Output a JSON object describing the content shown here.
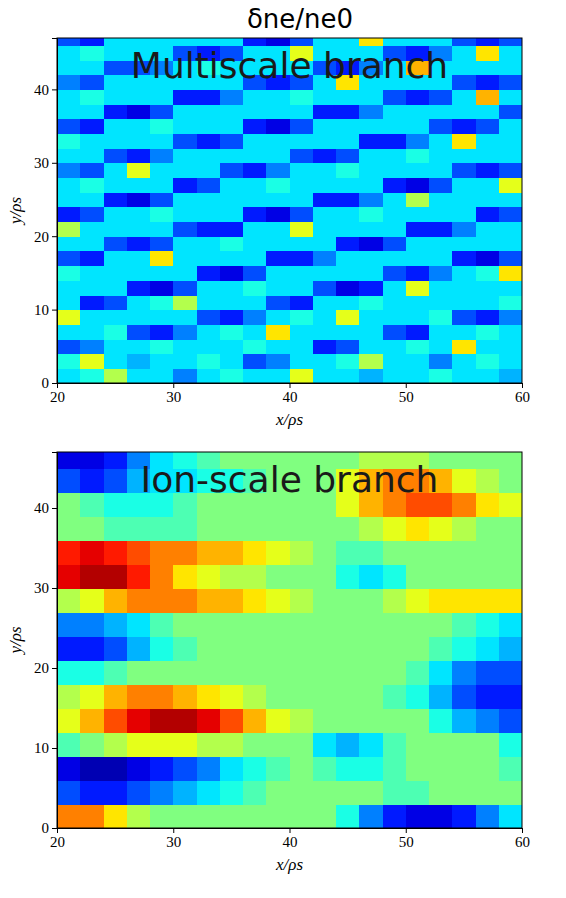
{
  "title": "δne/ne0",
  "chart_data": [
    {
      "type": "heatmap",
      "title": "Multiscale branch",
      "xlabel": "x/ρs",
      "ylabel": "y/ρs",
      "xlim": [
        20,
        60
      ],
      "ylim": [
        0,
        47
      ],
      "xticks": [
        20,
        30,
        40,
        50,
        60
      ],
      "yticks": [
        0,
        10,
        20,
        30,
        40
      ],
      "zlim": [
        -1,
        1
      ],
      "x": [
        21,
        23,
        25,
        27,
        29,
        31,
        33,
        35,
        37,
        39,
        41,
        43,
        45,
        47,
        49,
        51,
        53,
        55,
        57,
        59
      ],
      "y": [
        1,
        3,
        5,
        7,
        9,
        11,
        13,
        15,
        17,
        19,
        21,
        23,
        25,
        27,
        29,
        31,
        33,
        35,
        37,
        39,
        41,
        43,
        45,
        47
      ],
      "values": [
        [
          -0.3,
          -0.2,
          0.1,
          -0.3,
          -0.3,
          -0.5,
          -0.3,
          -0.2,
          -0.3,
          -0.3,
          0.2,
          -0.3,
          -0.3,
          -0.4,
          -0.3,
          -0.3,
          -0.2,
          -0.3,
          -0.3,
          -0.4
        ],
        [
          -0.2,
          0.2,
          -0.3,
          -0.4,
          -0.3,
          -0.3,
          -0.2,
          -0.3,
          -0.6,
          -0.5,
          -0.3,
          -0.3,
          -0.2,
          0.1,
          -0.3,
          -0.3,
          -0.5,
          -0.3,
          -0.2,
          -0.3
        ],
        [
          -0.6,
          -0.5,
          -0.3,
          -0.3,
          -0.2,
          -0.3,
          -0.3,
          -0.3,
          -0.2,
          -0.3,
          -0.3,
          -0.7,
          -0.6,
          -0.3,
          -0.3,
          -0.2,
          -0.3,
          0.3,
          -0.3,
          -0.3
        ],
        [
          -0.3,
          -0.3,
          -0.2,
          -0.6,
          -0.7,
          -0.5,
          -0.3,
          -0.2,
          -0.3,
          0.3,
          -0.3,
          -0.3,
          -0.3,
          -0.3,
          -0.6,
          -0.7,
          -0.3,
          -0.3,
          -0.2,
          -0.3
        ],
        [
          0.2,
          -0.3,
          -0.3,
          -0.3,
          -0.3,
          -0.3,
          -0.6,
          -0.7,
          -0.5,
          -0.3,
          -0.2,
          -0.3,
          0.2,
          -0.3,
          -0.3,
          -0.3,
          -0.2,
          -0.6,
          -0.7,
          -0.5
        ],
        [
          -0.3,
          -0.7,
          -0.6,
          -0.3,
          -0.2,
          0.1,
          -0.3,
          -0.3,
          -0.3,
          -0.6,
          -0.7,
          -0.3,
          -0.3,
          -0.2,
          -0.3,
          -0.3,
          -0.3,
          -0.3,
          -0.3,
          -0.2
        ],
        [
          -0.3,
          -0.3,
          -0.3,
          -0.7,
          -0.8,
          -0.6,
          -0.3,
          -0.3,
          -0.2,
          -0.3,
          -0.3,
          -0.6,
          -0.8,
          -0.7,
          -0.3,
          0.2,
          -0.3,
          -0.3,
          -0.3,
          -0.3
        ],
        [
          -0.2,
          -0.3,
          -0.3,
          -0.3,
          -0.3,
          -0.3,
          -0.7,
          -0.8,
          -0.6,
          -0.3,
          -0.3,
          -0.3,
          -0.3,
          -0.3,
          -0.6,
          -0.7,
          -0.5,
          -0.3,
          -0.2,
          0.3
        ],
        [
          -0.6,
          -0.7,
          -0.3,
          -0.3,
          0.3,
          -0.3,
          -0.3,
          -0.3,
          -0.3,
          -0.7,
          -0.7,
          -0.5,
          -0.3,
          -0.3,
          -0.3,
          -0.3,
          -0.3,
          -0.7,
          -0.8,
          -0.6
        ],
        [
          -0.3,
          -0.3,
          -0.6,
          -0.7,
          -0.6,
          -0.3,
          -0.3,
          -0.2,
          -0.3,
          -0.3,
          -0.3,
          -0.3,
          -0.7,
          -0.8,
          -0.6,
          -0.3,
          -0.3,
          -0.3,
          -0.3,
          -0.3
        ],
        [
          0.1,
          -0.3,
          -0.3,
          -0.3,
          -0.3,
          -0.6,
          -0.7,
          -0.7,
          -0.3,
          -0.3,
          0.2,
          -0.3,
          -0.3,
          -0.3,
          -0.3,
          -0.7,
          -0.7,
          -0.5,
          -0.3,
          -0.3
        ],
        [
          -0.7,
          -0.6,
          -0.3,
          -0.3,
          -0.2,
          -0.3,
          -0.3,
          -0.3,
          -0.7,
          -0.8,
          -0.6,
          -0.3,
          -0.3,
          -0.2,
          -0.3,
          -0.3,
          -0.3,
          -0.3,
          -0.7,
          -0.6
        ],
        [
          -0.3,
          -0.3,
          -0.7,
          -0.8,
          -0.6,
          -0.3,
          -0.3,
          -0.3,
          -0.3,
          -0.3,
          -0.3,
          -0.7,
          -0.7,
          -0.5,
          -0.3,
          0.1,
          -0.3,
          -0.3,
          -0.3,
          -0.3
        ],
        [
          -0.3,
          -0.2,
          -0.3,
          -0.3,
          -0.3,
          -0.7,
          -0.6,
          -0.3,
          -0.3,
          -0.2,
          -0.3,
          -0.3,
          -0.3,
          -0.3,
          -0.7,
          -0.8,
          -0.6,
          -0.3,
          -0.3,
          0.2
        ],
        [
          -0.5,
          -0.6,
          -0.3,
          0.2,
          -0.3,
          -0.3,
          -0.3,
          -0.6,
          -0.7,
          -0.5,
          -0.3,
          -0.3,
          -0.2,
          -0.3,
          -0.3,
          -0.3,
          -0.3,
          -0.6,
          -0.7,
          -0.6
        ],
        [
          -0.3,
          -0.3,
          -0.6,
          -0.7,
          -0.5,
          -0.3,
          -0.3,
          -0.3,
          -0.3,
          -0.3,
          -0.6,
          -0.7,
          -0.6,
          -0.3,
          -0.3,
          -0.2,
          -0.3,
          -0.3,
          -0.3,
          -0.3
        ],
        [
          -0.2,
          -0.3,
          -0.3,
          -0.3,
          -0.3,
          -0.6,
          -0.7,
          -0.6,
          -0.3,
          -0.3,
          -0.3,
          -0.3,
          -0.3,
          -0.7,
          -0.7,
          -0.5,
          -0.3,
          0.3,
          -0.3,
          -0.3
        ],
        [
          -0.6,
          -0.7,
          -0.3,
          -0.3,
          -0.2,
          -0.3,
          -0.3,
          -0.3,
          -0.7,
          -0.8,
          -0.6,
          -0.3,
          -0.3,
          -0.3,
          -0.3,
          -0.3,
          -0.6,
          -0.7,
          -0.6,
          -0.3
        ],
        [
          -0.3,
          -0.3,
          -0.7,
          -0.8,
          -0.6,
          -0.3,
          -0.3,
          -0.3,
          -0.3,
          -0.3,
          -0.3,
          -0.7,
          -0.7,
          -0.5,
          -0.3,
          -0.3,
          -0.3,
          -0.3,
          -0.3,
          -0.6
        ],
        [
          -0.3,
          -0.2,
          -0.3,
          -0.3,
          -0.3,
          -0.7,
          -0.7,
          -0.5,
          -0.3,
          -0.3,
          -0.2,
          -0.3,
          -0.3,
          -0.3,
          -0.6,
          -0.7,
          -0.6,
          -0.3,
          0.4,
          -0.3
        ],
        [
          -0.5,
          -0.6,
          -0.3,
          -0.3,
          -0.3,
          -0.3,
          -0.3,
          -0.3,
          -0.6,
          -0.7,
          -0.6,
          -0.3,
          0.3,
          -0.3,
          -0.3,
          -0.3,
          -0.3,
          -0.6,
          -0.7,
          -0.6
        ],
        [
          -0.3,
          -0.3,
          -0.6,
          -0.6,
          -0.5,
          -0.3,
          -0.2,
          -0.3,
          -0.3,
          -0.3,
          -0.3,
          -0.6,
          -0.7,
          -0.5,
          -0.3,
          0.4,
          -0.3,
          -0.3,
          -0.3,
          -0.3
        ],
        [
          -0.3,
          -0.2,
          -0.3,
          -0.3,
          -0.3,
          -0.6,
          -0.7,
          -0.6,
          -0.3,
          -0.3,
          0.2,
          -0.3,
          -0.3,
          -0.3,
          -0.6,
          -0.7,
          -0.5,
          -0.3,
          0.3,
          -0.3
        ],
        [
          -0.6,
          -0.7,
          -0.3,
          -0.3,
          -0.3,
          -0.3,
          -0.3,
          -0.3,
          -0.7,
          -0.8,
          -0.6,
          -0.3,
          -0.3,
          0.3,
          -0.3,
          -0.3,
          -0.3,
          -0.6,
          -0.7,
          -0.6
        ]
      ]
    },
    {
      "type": "heatmap",
      "title": "Ion-scale branch",
      "xlabel": "x/ρs",
      "ylabel": "y/ρs",
      "xlim": [
        20,
        60
      ],
      "ylim": [
        0,
        47
      ],
      "xticks": [
        20,
        30,
        40,
        50,
        60
      ],
      "yticks": [
        0,
        10,
        20,
        30,
        40
      ],
      "zlim": [
        -1,
        1
      ],
      "x": [
        21,
        23,
        25,
        27,
        29,
        31,
        33,
        35,
        37,
        39,
        41,
        43,
        45,
        47,
        49,
        51,
        53,
        55,
        57,
        59
      ],
      "y": [
        1.5,
        4.5,
        7.5,
        10.5,
        13.5,
        16.5,
        19.5,
        22.5,
        25.5,
        28.5,
        31.5,
        34.5,
        37.5,
        40.5,
        43.5,
        46.5
      ],
      "values": [
        [
          0.5,
          0.5,
          0.3,
          0.1,
          0,
          0,
          0,
          0,
          0,
          0,
          0,
          0,
          -0.2,
          -0.5,
          -0.7,
          -0.8,
          -0.8,
          -0.7,
          -0.5,
          -0.3
        ],
        [
          -0.6,
          -0.7,
          -0.7,
          -0.6,
          -0.5,
          -0.4,
          -0.3,
          -0.2,
          -0.1,
          0,
          0,
          0,
          0,
          0,
          -0.1,
          -0.1,
          0,
          0,
          0,
          0
        ],
        [
          -0.8,
          -0.9,
          -0.9,
          -0.8,
          -0.7,
          -0.6,
          -0.5,
          -0.3,
          -0.2,
          -0.1,
          0,
          -0.1,
          -0.2,
          -0.2,
          -0.1,
          0,
          0,
          0,
          0,
          -0.1
        ],
        [
          -0.1,
          0,
          0.1,
          0.2,
          0.2,
          0.2,
          0.1,
          0.1,
          0,
          0,
          0,
          -0.3,
          -0.4,
          -0.3,
          -0.1,
          0,
          0,
          0,
          0,
          -0.2
        ],
        [
          0.2,
          0.4,
          0.6,
          0.8,
          0.9,
          0.9,
          0.8,
          0.6,
          0.4,
          0.2,
          0.1,
          0,
          0,
          0,
          0,
          0,
          -0.2,
          -0.4,
          -0.5,
          -0.6
        ],
        [
          0.1,
          0.2,
          0.4,
          0.5,
          0.5,
          0.4,
          0.3,
          0.2,
          0.1,
          0,
          0,
          0,
          0,
          0,
          -0.1,
          -0.2,
          -0.4,
          -0.6,
          -0.7,
          -0.7
        ],
        [
          -0.2,
          -0.2,
          -0.1,
          0,
          0,
          0,
          0,
          0,
          0,
          0,
          0,
          0,
          0,
          0,
          0,
          -0.1,
          -0.3,
          -0.5,
          -0.6,
          -0.6
        ],
        [
          -0.7,
          -0.7,
          -0.6,
          -0.4,
          -0.2,
          -0.1,
          0,
          0,
          0,
          0,
          0,
          0,
          0,
          0,
          0,
          0,
          -0.1,
          -0.2,
          -0.3,
          -0.4
        ],
        [
          -0.5,
          -0.5,
          -0.4,
          -0.3,
          -0.1,
          0,
          0,
          0,
          0,
          0,
          0,
          0,
          0,
          0,
          0,
          0,
          0,
          -0.1,
          -0.2,
          -0.3
        ],
        [
          0.1,
          0.2,
          0.4,
          0.5,
          0.5,
          0.5,
          0.4,
          0.4,
          0.3,
          0.2,
          0.1,
          0,
          0,
          0,
          0.1,
          0.2,
          0.3,
          0.3,
          0.3,
          0.3
        ],
        [
          0.8,
          0.9,
          0.9,
          0.7,
          0.5,
          0.3,
          0.2,
          0.1,
          0.1,
          0,
          0,
          0,
          -0.2,
          -0.3,
          -0.2,
          0,
          0,
          0,
          0,
          0
        ],
        [
          0.7,
          0.8,
          0.7,
          0.6,
          0.5,
          0.5,
          0.4,
          0.4,
          0.3,
          0.2,
          0.1,
          0,
          -0.1,
          -0.1,
          0,
          0,
          0,
          0,
          0,
          0
        ],
        [
          0,
          0,
          -0.1,
          -0.1,
          -0.1,
          -0.1,
          0,
          0,
          0,
          0,
          0,
          0,
          0,
          0.1,
          0.2,
          0.3,
          0.2,
          0.1,
          0,
          0
        ],
        [
          0,
          -0.1,
          -0.2,
          -0.2,
          -0.2,
          -0.1,
          0,
          0,
          0,
          0,
          0,
          0,
          0.2,
          0.4,
          0.5,
          0.6,
          0.6,
          0.5,
          0.3,
          0.2
        ],
        [
          -0.6,
          -0.7,
          -0.6,
          -0.4,
          -0.3,
          -0.3,
          -0.2,
          -0.2,
          -0.1,
          0,
          0,
          0,
          0.2,
          0.4,
          0.5,
          0.5,
          0.4,
          0.2,
          0.1,
          0
        ],
        [
          -0.8,
          -0.8,
          -0.7,
          -0.5,
          -0.3,
          -0.2,
          -0.1,
          0,
          0,
          0,
          0,
          0,
          0,
          0.1,
          0.1,
          0.1,
          0,
          0,
          0,
          0
        ]
      ]
    }
  ]
}
